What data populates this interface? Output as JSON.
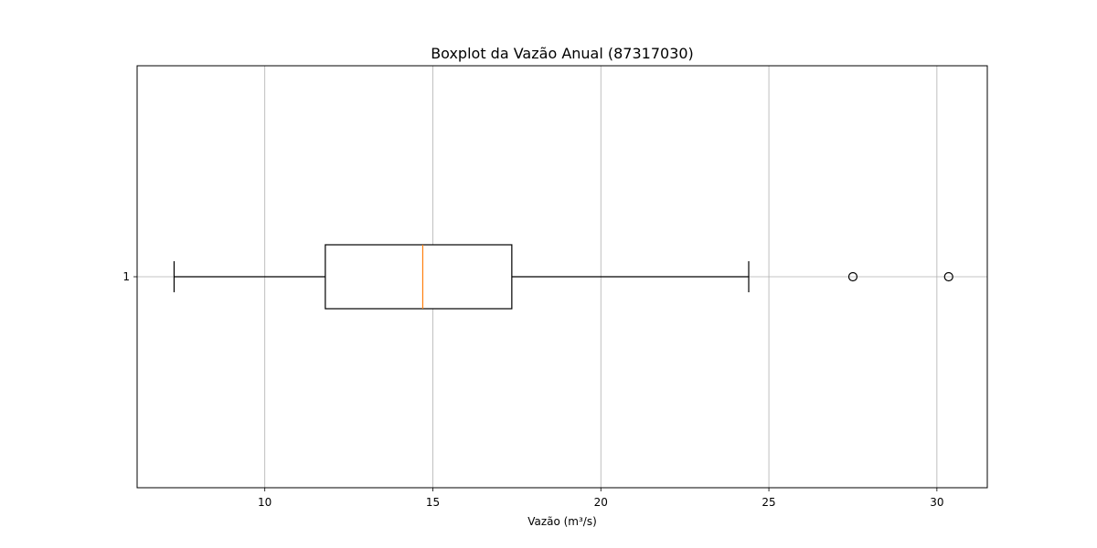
{
  "chart_data": {
    "type": "boxplot",
    "orientation": "horizontal",
    "title": "Boxplot da Vazão Anual (87317030)",
    "xlabel": "Vazão (m³/s)",
    "ylabel": "",
    "xlim": [
      6.2,
      31.5
    ],
    "xticks": [
      10,
      15,
      20,
      25,
      30
    ],
    "grid": true,
    "boxes": [
      {
        "label": "1",
        "whisker_low": 7.3,
        "q1": 11.8,
        "median": 14.7,
        "q3": 17.35,
        "whisker_high": 24.4,
        "outliers": [
          27.5,
          30.35
        ]
      }
    ],
    "colors": {
      "box": "#000000",
      "median": "#ff7f0e",
      "grid": "#b0b0b0"
    }
  }
}
